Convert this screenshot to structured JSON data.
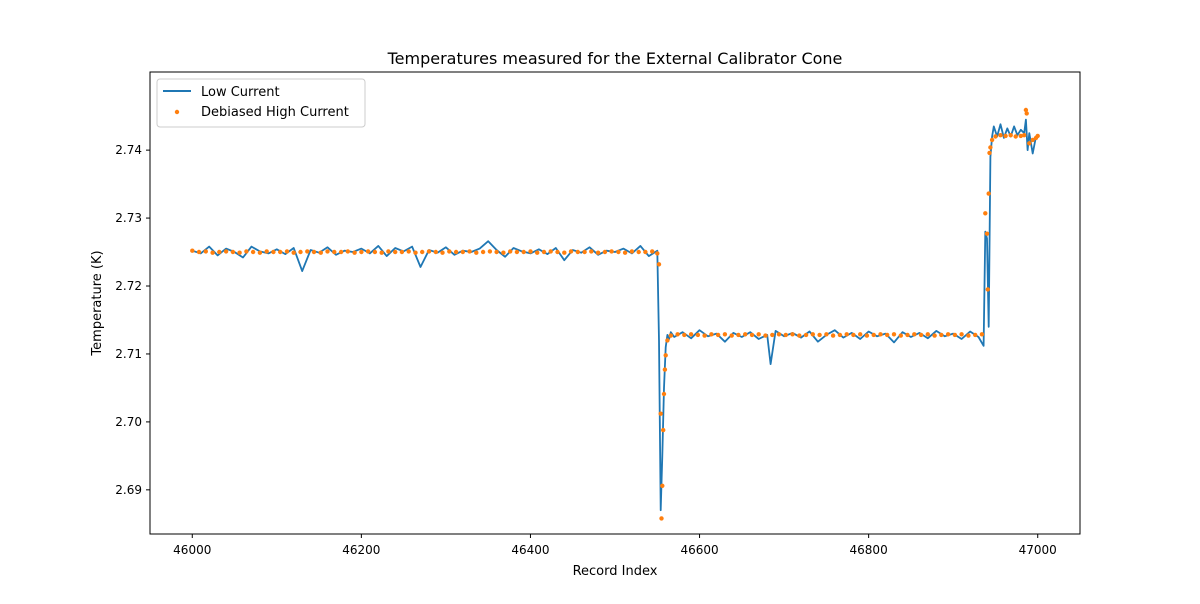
{
  "chart_data": {
    "type": "line",
    "title": "Temperatures measured for the External Calibrator Cone",
    "xlabel": "Record Index",
    "ylabel": "Temperature (K)",
    "xlim": [
      45950,
      47050
    ],
    "ylim": [
      2.6835,
      2.7515
    ],
    "xticks": [
      46000,
      46200,
      46400,
      46600,
      46800,
      47000
    ],
    "xtick_labels": [
      "46000",
      "46200",
      "46400",
      "46600",
      "46800",
      "47000"
    ],
    "yticks": [
      2.69,
      2.7,
      2.71,
      2.72,
      2.73,
      2.74
    ],
    "ytick_labels": [
      "2.69",
      "2.70",
      "2.71",
      "2.72",
      "2.73",
      "2.74"
    ],
    "grid": false,
    "legend_position": "upper-left",
    "legend": [
      "Low Current",
      "Debiased High Current"
    ],
    "colors": {
      "low_current": "#1f77b4",
      "high_current": "#ff7f0e"
    },
    "series": [
      {
        "name": "Low Current",
        "kind": "line",
        "x": [
          46000,
          46010,
          46020,
          46030,
          46040,
          46050,
          46060,
          46070,
          46080,
          46090,
          46100,
          46110,
          46120,
          46130,
          46140,
          46150,
          46160,
          46170,
          46180,
          46190,
          46200,
          46210,
          46220,
          46230,
          46240,
          46250,
          46260,
          46270,
          46280,
          46290,
          46300,
          46310,
          46320,
          46330,
          46340,
          46350,
          46360,
          46370,
          46380,
          46390,
          46400,
          46410,
          46420,
          46430,
          46440,
          46450,
          46460,
          46470,
          46480,
          46490,
          46500,
          46510,
          46520,
          46530,
          46540,
          46550,
          46552,
          46554,
          46556,
          46558,
          46560,
          46562,
          46564,
          46566,
          46570,
          46580,
          46590,
          46600,
          46610,
          46620,
          46630,
          46640,
          46650,
          46660,
          46670,
          46680,
          46684,
          46690,
          46700,
          46710,
          46720,
          46730,
          46740,
          46750,
          46760,
          46770,
          46780,
          46790,
          46800,
          46810,
          46820,
          46830,
          46840,
          46850,
          46860,
          46870,
          46880,
          46890,
          46900,
          46910,
          46920,
          46930,
          46936,
          46938,
          46940,
          46942,
          46944,
          46946,
          46948,
          46952,
          46956,
          46960,
          46964,
          46968,
          46972,
          46976,
          46980,
          46984,
          46986,
          46988,
          46990,
          46994,
          46998,
          47000
        ],
        "y": [
          2.7252,
          2.7248,
          2.7258,
          2.7245,
          2.7255,
          2.725,
          2.7242,
          2.7258,
          2.7251,
          2.7248,
          2.7254,
          2.7247,
          2.7256,
          2.7222,
          2.7253,
          2.7249,
          2.7257,
          2.7246,
          2.7252,
          2.725,
          2.7255,
          2.7248,
          2.7259,
          2.7244,
          2.7256,
          2.7251,
          2.7258,
          2.7228,
          2.7253,
          2.7249,
          2.7257,
          2.7246,
          2.7252,
          2.725,
          2.7255,
          2.7266,
          2.7253,
          2.7243,
          2.7256,
          2.7251,
          2.7248,
          2.7254,
          2.7247,
          2.7256,
          2.7238,
          2.7253,
          2.7249,
          2.7257,
          2.7246,
          2.7252,
          2.725,
          2.7255,
          2.7248,
          2.7259,
          2.7244,
          2.7252,
          2.712,
          2.687,
          2.695,
          2.705,
          2.711,
          2.7128,
          2.7122,
          2.7132,
          2.7125,
          2.7132,
          2.7123,
          2.7135,
          2.7126,
          2.713,
          2.7118,
          2.7131,
          2.7125,
          2.7132,
          2.7122,
          2.7128,
          2.7085,
          2.7134,
          2.7126,
          2.7131,
          2.7124,
          2.7133,
          2.7118,
          2.7128,
          2.7135,
          2.7124,
          2.7131,
          2.7122,
          2.7133,
          2.7126,
          2.713,
          2.7117,
          2.7132,
          2.7125,
          2.7131,
          2.7123,
          2.7134,
          2.7126,
          2.713,
          2.7122,
          2.7133,
          2.7125,
          2.7112,
          2.728,
          2.727,
          2.714,
          2.739,
          2.742,
          2.7435,
          2.742,
          2.7438,
          2.7418,
          2.7432,
          2.742,
          2.7435,
          2.7422,
          2.743,
          2.7425,
          2.7445,
          2.74,
          2.7425,
          2.7395,
          2.742,
          2.7422
        ]
      },
      {
        "name": "Debiased High Current",
        "kind": "scatter",
        "x": [
          46000,
          46008,
          46016,
          46024,
          46032,
          46040,
          46048,
          46056,
          46064,
          46072,
          46080,
          46088,
          46096,
          46104,
          46112,
          46120,
          46128,
          46136,
          46144,
          46152,
          46160,
          46168,
          46176,
          46184,
          46192,
          46200,
          46208,
          46216,
          46224,
          46232,
          46240,
          46248,
          46256,
          46264,
          46272,
          46280,
          46288,
          46296,
          46304,
          46312,
          46320,
          46328,
          46336,
          46344,
          46352,
          46360,
          46368,
          46376,
          46384,
          46392,
          46400,
          46408,
          46416,
          46424,
          46432,
          46440,
          46448,
          46456,
          46464,
          46472,
          46480,
          46488,
          46496,
          46504,
          46512,
          46520,
          46528,
          46536,
          46544,
          46550,
          46552,
          46554,
          46555,
          46556,
          46557,
          46558,
          46559,
          46560,
          46562,
          46566,
          46574,
          46582,
          46590,
          46598,
          46606,
          46614,
          46622,
          46630,
          46638,
          46646,
          46654,
          46662,
          46670,
          46678,
          46686,
          46694,
          46702,
          46710,
          46718,
          46726,
          46734,
          46742,
          46750,
          46758,
          46766,
          46774,
          46782,
          46790,
          46798,
          46806,
          46814,
          46822,
          46830,
          46838,
          46846,
          46854,
          46862,
          46870,
          46878,
          46886,
          46894,
          46902,
          46910,
          46918,
          46926,
          46934,
          46938,
          46940,
          46941,
          46942,
          46943,
          46944,
          46946,
          46950,
          46956,
          46962,
          46968,
          46974,
          46980,
          46984,
          46986,
          46987,
          46990,
          46994,
          46998,
          47000
        ],
        "y": [
          2.7252,
          2.725,
          2.7251,
          2.7249,
          2.725,
          2.7251,
          2.725,
          2.7249,
          2.7251,
          2.725,
          2.7249,
          2.7251,
          2.725,
          2.725,
          2.7251,
          2.7249,
          2.725,
          2.7251,
          2.725,
          2.7249,
          2.7251,
          2.725,
          2.725,
          2.7251,
          2.7249,
          2.725,
          2.7251,
          2.725,
          2.7249,
          2.7251,
          2.725,
          2.725,
          2.7251,
          2.7249,
          2.725,
          2.7251,
          2.725,
          2.7249,
          2.7251,
          2.725,
          2.725,
          2.7251,
          2.7249,
          2.725,
          2.7251,
          2.725,
          2.7249,
          2.7251,
          2.725,
          2.725,
          2.7251,
          2.7249,
          2.725,
          2.7251,
          2.725,
          2.7249,
          2.7251,
          2.725,
          2.725,
          2.7251,
          2.7249,
          2.725,
          2.7251,
          2.725,
          2.7249,
          2.7251,
          2.725,
          2.725,
          2.7251,
          2.7248,
          2.7232,
          2.7012,
          2.6858,
          2.6906,
          2.6988,
          2.7041,
          2.7077,
          2.7098,
          2.712,
          2.7127,
          2.7129,
          2.7128,
          2.7129,
          2.7128,
          2.7127,
          2.7129,
          2.7128,
          2.7129,
          2.7127,
          2.7128,
          2.7129,
          2.7128,
          2.7129,
          2.7127,
          2.7128,
          2.7129,
          2.7128,
          2.7129,
          2.7127,
          2.7128,
          2.7129,
          2.7128,
          2.7129,
          2.7127,
          2.7128,
          2.7129,
          2.7128,
          2.7129,
          2.7127,
          2.7128,
          2.7129,
          2.7128,
          2.7129,
          2.7127,
          2.7128,
          2.7129,
          2.7128,
          2.7129,
          2.7127,
          2.7128,
          2.7129,
          2.7128,
          2.7129,
          2.7127,
          2.7128,
          2.7129,
          2.7307,
          2.7277,
          2.7195,
          2.7336,
          2.7396,
          2.7404,
          2.7415,
          2.742,
          2.7422,
          2.7421,
          2.7422,
          2.742,
          2.7421,
          2.7422,
          2.7459,
          2.7454,
          2.741,
          2.7415,
          2.7418,
          2.7421
        ]
      }
    ]
  }
}
